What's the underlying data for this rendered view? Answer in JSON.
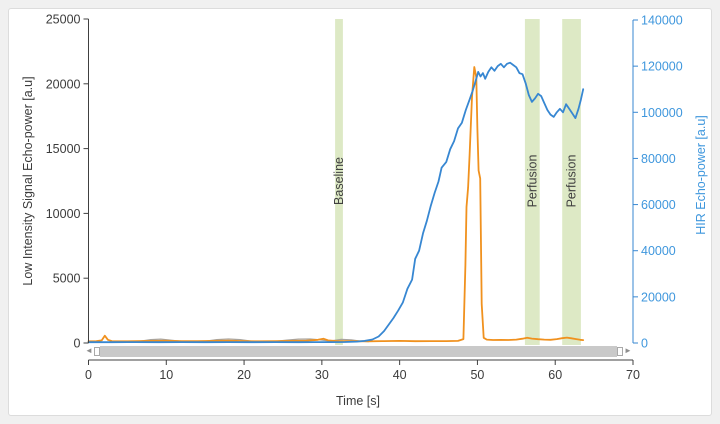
{
  "chart_data": {
    "type": "line",
    "title": "",
    "xlabel": "Time [s]",
    "x_range": [
      0,
      70
    ],
    "x_ticks": [
      0,
      10,
      20,
      30,
      40,
      50,
      60,
      70
    ],
    "grid": false,
    "legend": "none",
    "left_axis": {
      "label": "Low Intensity Signal Echo-power [a.u]",
      "range": [
        0,
        25000
      ],
      "ticks": [
        0,
        5000,
        10000,
        15000,
        20000,
        25000
      ],
      "line_color": "#404040",
      "text_color": "#3c3c3c"
    },
    "right_axis": {
      "label": "HIR Echo-power [a.u]",
      "range": [
        0,
        140000
      ],
      "ticks": [
        0,
        20000,
        40000,
        60000,
        80000,
        100000,
        120000,
        140000
      ],
      "line_color": "#3787d2",
      "text_color": "#3f97dd"
    },
    "x_axis": {
      "line_color": "#404040",
      "text_color": "#3c3c3c"
    },
    "band_color": "#dde9c5",
    "annotation_text_color": "#3f3f3f",
    "annotations": [
      {
        "label": "Baseline",
        "t0": 31.7,
        "t1": 32.7
      },
      {
        "label": "Perfusion",
        "t0": 56.1,
        "t1": 58.0
      },
      {
        "label": "Perfusion",
        "t0": 60.9,
        "t1": 63.3
      }
    ],
    "series": [
      {
        "name": "baseline-noise",
        "axis": "left",
        "color": "#a8a49e",
        "width": 1.2,
        "points": [
          [
            5,
            60
          ],
          [
            6.5,
            120
          ],
          [
            8,
            260
          ],
          [
            9.3,
            300
          ],
          [
            10.5,
            220
          ],
          [
            12,
            120
          ],
          [
            13.5,
            90
          ],
          [
            15,
            140
          ],
          [
            16.5,
            260
          ],
          [
            18,
            310
          ],
          [
            19.5,
            260
          ],
          [
            21,
            140
          ],
          [
            22.5,
            90
          ],
          [
            24,
            120
          ],
          [
            25.5,
            220
          ],
          [
            27,
            300
          ],
          [
            28.5,
            310
          ],
          [
            29.8,
            240
          ],
          [
            31,
            150
          ],
          [
            32.5,
            280
          ],
          [
            33.8,
            240
          ],
          [
            35,
            140
          ],
          [
            36,
            100
          ]
        ]
      },
      {
        "name": "low-intensity-signal",
        "axis": "left",
        "color": "#f0911e",
        "width": 1.8,
        "points": [
          [
            0,
            130
          ],
          [
            1,
            140
          ],
          [
            1.7,
            200
          ],
          [
            2.1,
            560
          ],
          [
            2.5,
            250
          ],
          [
            3,
            150
          ],
          [
            4,
            130
          ],
          [
            6,
            140
          ],
          [
            8,
            160
          ],
          [
            10,
            170
          ],
          [
            12,
            140
          ],
          [
            14,
            150
          ],
          [
            16,
            160
          ],
          [
            18,
            180
          ],
          [
            20,
            150
          ],
          [
            22,
            130
          ],
          [
            24,
            140
          ],
          [
            26,
            160
          ],
          [
            28,
            180
          ],
          [
            29.5,
            250
          ],
          [
            30.2,
            330
          ],
          [
            30.8,
            200
          ],
          [
            32,
            150
          ],
          [
            34,
            140
          ],
          [
            36,
            130
          ],
          [
            38,
            150
          ],
          [
            40,
            160
          ],
          [
            42,
            140
          ],
          [
            44,
            150
          ],
          [
            46,
            150
          ],
          [
            47.5,
            160
          ],
          [
            48.2,
            300
          ],
          [
            48.45,
            6000
          ],
          [
            48.6,
            10500
          ],
          [
            48.8,
            12000
          ],
          [
            49,
            14500
          ],
          [
            49.3,
            19000
          ],
          [
            49.6,
            21300
          ],
          [
            49.85,
            20500
          ],
          [
            50,
            16500
          ],
          [
            50.15,
            13300
          ],
          [
            50.35,
            12700
          ],
          [
            50.55,
            3000
          ],
          [
            50.8,
            400
          ],
          [
            51.2,
            260
          ],
          [
            52,
            230
          ],
          [
            53,
            240
          ],
          [
            54,
            230
          ],
          [
            55,
            260
          ],
          [
            55.8,
            330
          ],
          [
            56.4,
            400
          ],
          [
            57,
            340
          ],
          [
            57.8,
            290
          ],
          [
            58.6,
            260
          ],
          [
            59.4,
            250
          ],
          [
            60.2,
            300
          ],
          [
            60.9,
            370
          ],
          [
            61.5,
            420
          ],
          [
            62.1,
            360
          ],
          [
            62.7,
            300
          ],
          [
            63.2,
            250
          ],
          [
            63.6,
            220
          ]
        ]
      },
      {
        "name": "hir-echo-power",
        "axis": "right",
        "color": "#3787d2",
        "width": 1.8,
        "points": [
          [
            0,
            350
          ],
          [
            3,
            350
          ],
          [
            6,
            400
          ],
          [
            9,
            350
          ],
          [
            12,
            400
          ],
          [
            15,
            350
          ],
          [
            18,
            400
          ],
          [
            21,
            350
          ],
          [
            24,
            400
          ],
          [
            27,
            350
          ],
          [
            29,
            400
          ],
          [
            31,
            400
          ],
          [
            33,
            450
          ],
          [
            34.5,
            600
          ],
          [
            35.5,
            900
          ],
          [
            36.5,
            1500
          ],
          [
            37.3,
            2800
          ],
          [
            38,
            5200
          ],
          [
            38.6,
            8000
          ],
          [
            39.2,
            10800
          ],
          [
            39.8,
            14000
          ],
          [
            40.4,
            17500
          ],
          [
            41,
            23500
          ],
          [
            41.6,
            27500
          ],
          [
            42,
            36500
          ],
          [
            42.5,
            40000
          ],
          [
            43,
            47500
          ],
          [
            43.5,
            53000
          ],
          [
            44,
            59500
          ],
          [
            44.5,
            65000
          ],
          [
            45,
            70000
          ],
          [
            45.4,
            76000
          ],
          [
            46,
            78500
          ],
          [
            46.5,
            84000
          ],
          [
            47,
            87500
          ],
          [
            47.5,
            93000
          ],
          [
            48,
            95500
          ],
          [
            48.5,
            101000
          ],
          [
            49,
            105500
          ],
          [
            49.4,
            109500
          ],
          [
            49.8,
            114000
          ],
          [
            50.1,
            117500
          ],
          [
            50.4,
            115500
          ],
          [
            50.7,
            117000
          ],
          [
            51,
            114500
          ],
          [
            51.4,
            117500
          ],
          [
            51.8,
            119500
          ],
          [
            52.2,
            118000
          ],
          [
            52.6,
            120000
          ],
          [
            53,
            121000
          ],
          [
            53.4,
            119500
          ],
          [
            53.8,
            121000
          ],
          [
            54.2,
            121500
          ],
          [
            54.6,
            120500
          ],
          [
            55,
            119500
          ],
          [
            55.4,
            117000
          ],
          [
            55.8,
            116500
          ],
          [
            56.2,
            112500
          ],
          [
            56.6,
            107500
          ],
          [
            57,
            104500
          ],
          [
            57.4,
            106000
          ],
          [
            57.8,
            108000
          ],
          [
            58.2,
            107000
          ],
          [
            58.6,
            104000
          ],
          [
            59,
            101000
          ],
          [
            59.4,
            99000
          ],
          [
            59.8,
            98000
          ],
          [
            60.2,
            100000
          ],
          [
            60.6,
            101500
          ],
          [
            61,
            100000
          ],
          [
            61.4,
            103500
          ],
          [
            61.8,
            101500
          ],
          [
            62.2,
            99500
          ],
          [
            62.6,
            97500
          ],
          [
            63,
            101500
          ],
          [
            63.3,
            105500
          ],
          [
            63.6,
            110000
          ]
        ]
      }
    ]
  },
  "scrollbar": {
    "left_arrow_glyph": "◄",
    "right_arrow_glyph": "►"
  }
}
